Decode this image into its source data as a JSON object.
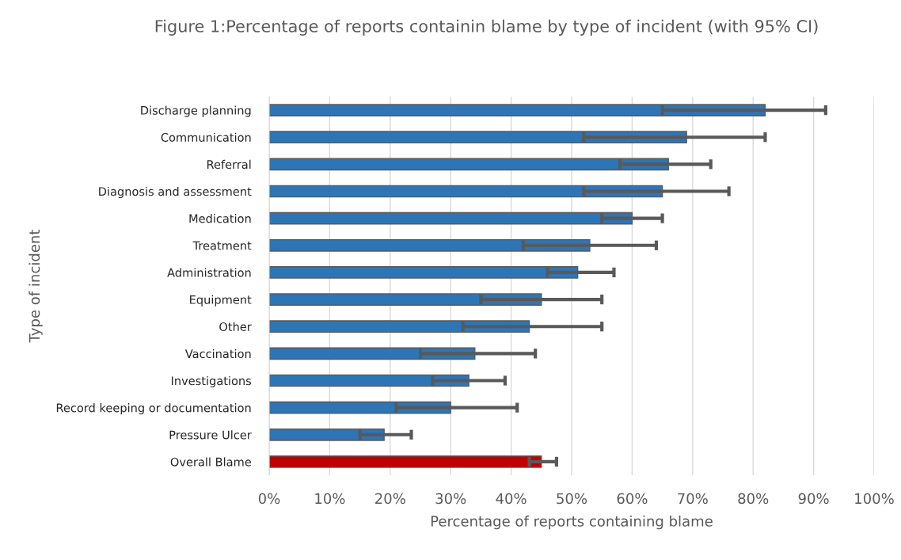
{
  "chart_data": {
    "type": "bar",
    "orientation": "horizontal",
    "title": "Figure 1:Percentage of reports containin blame by type of incident (with 95% CI)",
    "xlabel": "Percentage of reports containing blame",
    "ylabel": "Type of incident",
    "categories": [
      "Discharge planning",
      "Communication",
      "Referral",
      "Diagnosis and assessment",
      "Medication",
      "Treatment",
      "Administration",
      "Equipment",
      "Other",
      "Vaccination",
      "Investigations",
      "Record keeping or documentation",
      "Pressure Ulcer",
      "Overall Blame"
    ],
    "values": [
      82,
      69,
      66,
      65,
      60,
      53,
      51,
      45,
      43,
      34,
      33,
      30,
      19,
      45
    ],
    "errors": [
      [
        65,
        92
      ],
      [
        52,
        82
      ],
      [
        58,
        73
      ],
      [
        52,
        76
      ],
      [
        55,
        65
      ],
      [
        42,
        64
      ],
      [
        46,
        57
      ],
      [
        35,
        55
      ],
      [
        32,
        55
      ],
      [
        25,
        44
      ],
      [
        27,
        39
      ],
      [
        21,
        41
      ],
      [
        15,
        23.5
      ],
      [
        43,
        47.5
      ]
    ],
    "colors": [
      "#2e75b6",
      "#2e75b6",
      "#2e75b6",
      "#2e75b6",
      "#2e75b6",
      "#2e75b6",
      "#2e75b6",
      "#2e75b6",
      "#2e75b6",
      "#2e75b6",
      "#2e75b6",
      "#2e75b6",
      "#2e75b6",
      "#c00000"
    ],
    "xlim": [
      0,
      100
    ],
    "xticks": [
      {
        "value": 0,
        "label": "0%"
      },
      {
        "value": 10,
        "label": "10%"
      },
      {
        "value": 20,
        "label": "20%"
      },
      {
        "value": 30,
        "label": "30%"
      },
      {
        "value": 40,
        "label": "40%"
      },
      {
        "value": 50,
        "label": "50%"
      },
      {
        "value": 60,
        "label": "60%"
      },
      {
        "value": 70,
        "label": "70%"
      },
      {
        "value": 80,
        "label": "80%"
      },
      {
        "value": 90,
        "label": "90%"
      },
      {
        "value": 100,
        "label": "100%"
      }
    ],
    "grid": "x"
  }
}
